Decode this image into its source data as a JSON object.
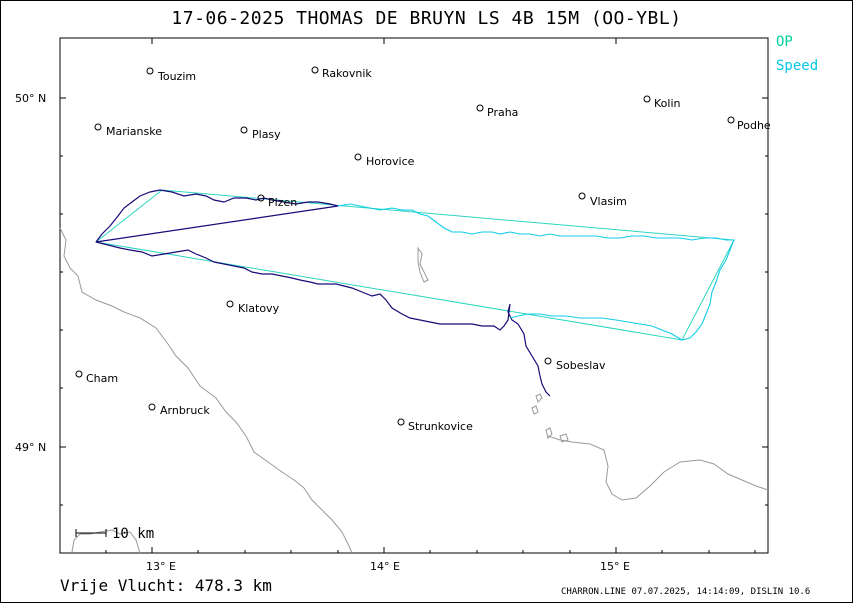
{
  "title": "17-06-2025   THOMAS DE BRUYN   LS 4B 15M (OO-YBL)",
  "legend": {
    "op_label": "OP",
    "op_color": "#00d2a0",
    "speed_label": "Speed",
    "speed_color": "#00c8e6"
  },
  "colors": {
    "track": "#1a0a78",
    "border": "#9a9a9a",
    "lake": "#9a9a9a",
    "task": "#2ad6bf",
    "track_speed": "#12cde8"
  },
  "axes": {
    "lat_labels": [
      "50° N",
      "49° N"
    ],
    "lon_labels": [
      "13° E",
      "14° E",
      "15° E"
    ]
  },
  "cities": [
    {
      "name": "Touzim"
    },
    {
      "name": "Rakovnik"
    },
    {
      "name": "Praha"
    },
    {
      "name": "Kolin"
    },
    {
      "name": "Podhe"
    },
    {
      "name": "Marianske"
    },
    {
      "name": "Plasy"
    },
    {
      "name": "Horovice"
    },
    {
      "name": "Plzen"
    },
    {
      "name": "Vlasim"
    },
    {
      "name": "Klatovy"
    },
    {
      "name": "Sobeslav"
    },
    {
      "name": "Cham"
    },
    {
      "name": "Arnbruck"
    },
    {
      "name": "Strunkovice"
    }
  ],
  "scale_bar": {
    "label": "10 km"
  },
  "footer": {
    "distance": "Vrije Vlucht:  478.3 km",
    "meta": "CHARRON.LINE 07.07.2025, 14:14:09, DISLIN 10.6"
  }
}
